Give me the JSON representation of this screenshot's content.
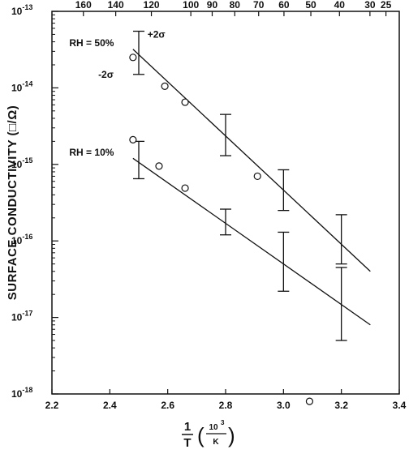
{
  "chart_data": {
    "type": "scatter",
    "title": "",
    "ylabel": "SURFACE CONDUCTIVITY (□/Ω)",
    "xlabel": {
      "one": "1",
      "T": "T",
      "num": "10",
      "exp": "3",
      "den": "K"
    },
    "x_range": [
      2.2,
      3.4
    ],
    "y_log": true,
    "y_range_exp": [
      -18,
      -13
    ],
    "bottom_ticks": [
      "2.2",
      "2.4",
      "2.6",
      "2.8",
      "3.0",
      "3.2",
      "3.4"
    ],
    "bottom_tick_values": [
      2.2,
      2.4,
      2.6,
      2.8,
      3.0,
      3.2,
      3.4
    ],
    "left_ticks": [
      {
        "exp": -13,
        "base": "10",
        "sup": "-13"
      },
      {
        "exp": -14,
        "base": "10",
        "sup": "-14"
      },
      {
        "exp": -15,
        "base": "10",
        "sup": "-15"
      },
      {
        "exp": -16,
        "base": "10",
        "sup": "-16"
      },
      {
        "exp": -17,
        "base": "10",
        "sup": "-17"
      },
      {
        "exp": -18,
        "base": "10",
        "sup": "-18"
      }
    ],
    "top_ticks": [
      {
        "label": "160",
        "celsius": 160
      },
      {
        "label": "140",
        "celsius": 140
      },
      {
        "label": "120",
        "celsius": 120
      },
      {
        "label": "100",
        "celsius": 100
      },
      {
        "label": "90",
        "celsius": 90
      },
      {
        "label": "80",
        "celsius": 80
      },
      {
        "label": "70",
        "celsius": 70
      },
      {
        "label": "60",
        "celsius": 60
      },
      {
        "label": "50",
        "celsius": 50
      },
      {
        "label": "40",
        "celsius": 40
      },
      {
        "label": "30",
        "celsius": 30
      },
      {
        "label": "25",
        "celsius": 25
      }
    ],
    "series": [
      {
        "name": "RH = 50%",
        "points": [
          {
            "x": 2.48,
            "y": 2.5e-14
          },
          {
            "x": 2.59,
            "y": 1.05e-14
          },
          {
            "x": 2.66,
            "y": 6.5e-15
          },
          {
            "x": 2.91,
            "y": 7e-16
          }
        ],
        "fit": [
          {
            "x": 2.48,
            "y": 3.2e-14
          },
          {
            "x": 3.3,
            "y": 4e-17
          }
        ],
        "error_bars": [
          {
            "x": 2.5,
            "lo": 1.5e-14,
            "hi": 5.5e-14
          },
          {
            "x": 2.8,
            "lo": 1.3e-15,
            "hi": 4.5e-15
          },
          {
            "x": 3.0,
            "lo": 2.5e-16,
            "hi": 8.5e-16
          },
          {
            "x": 3.2,
            "lo": 5e-17,
            "hi": 2.2e-16
          }
        ]
      },
      {
        "name": "RH = 10%",
        "points": [
          {
            "x": 2.48,
            "y": 2.1e-15
          },
          {
            "x": 2.57,
            "y": 9.5e-16
          },
          {
            "x": 2.66,
            "y": 4.9e-16
          },
          {
            "x": 3.09,
            "y": 8e-19
          }
        ],
        "fit": [
          {
            "x": 2.48,
            "y": 1.2e-15
          },
          {
            "x": 3.3,
            "y": 8e-18
          }
        ],
        "error_bars": [
          {
            "x": 2.5,
            "lo": 6.5e-16,
            "hi": 2e-15
          },
          {
            "x": 2.8,
            "lo": 1.2e-16,
            "hi": 2.6e-16
          },
          {
            "x": 3.0,
            "lo": 2.2e-17,
            "hi": 1.3e-16
          },
          {
            "x": 3.2,
            "lo": 5e-18,
            "hi": 4.5e-17
          }
        ]
      }
    ],
    "annotations": [
      {
        "text": "RH = 50%",
        "x": 2.26,
        "y": 3.5e-14
      },
      {
        "text": "+2σ",
        "x": 2.53,
        "y": 4.5e-14
      },
      {
        "text": "-2σ",
        "x": 2.36,
        "y": 1.35e-14
      },
      {
        "text": "RH = 10%",
        "x": 2.26,
        "y": 1.3e-15
      }
    ]
  }
}
